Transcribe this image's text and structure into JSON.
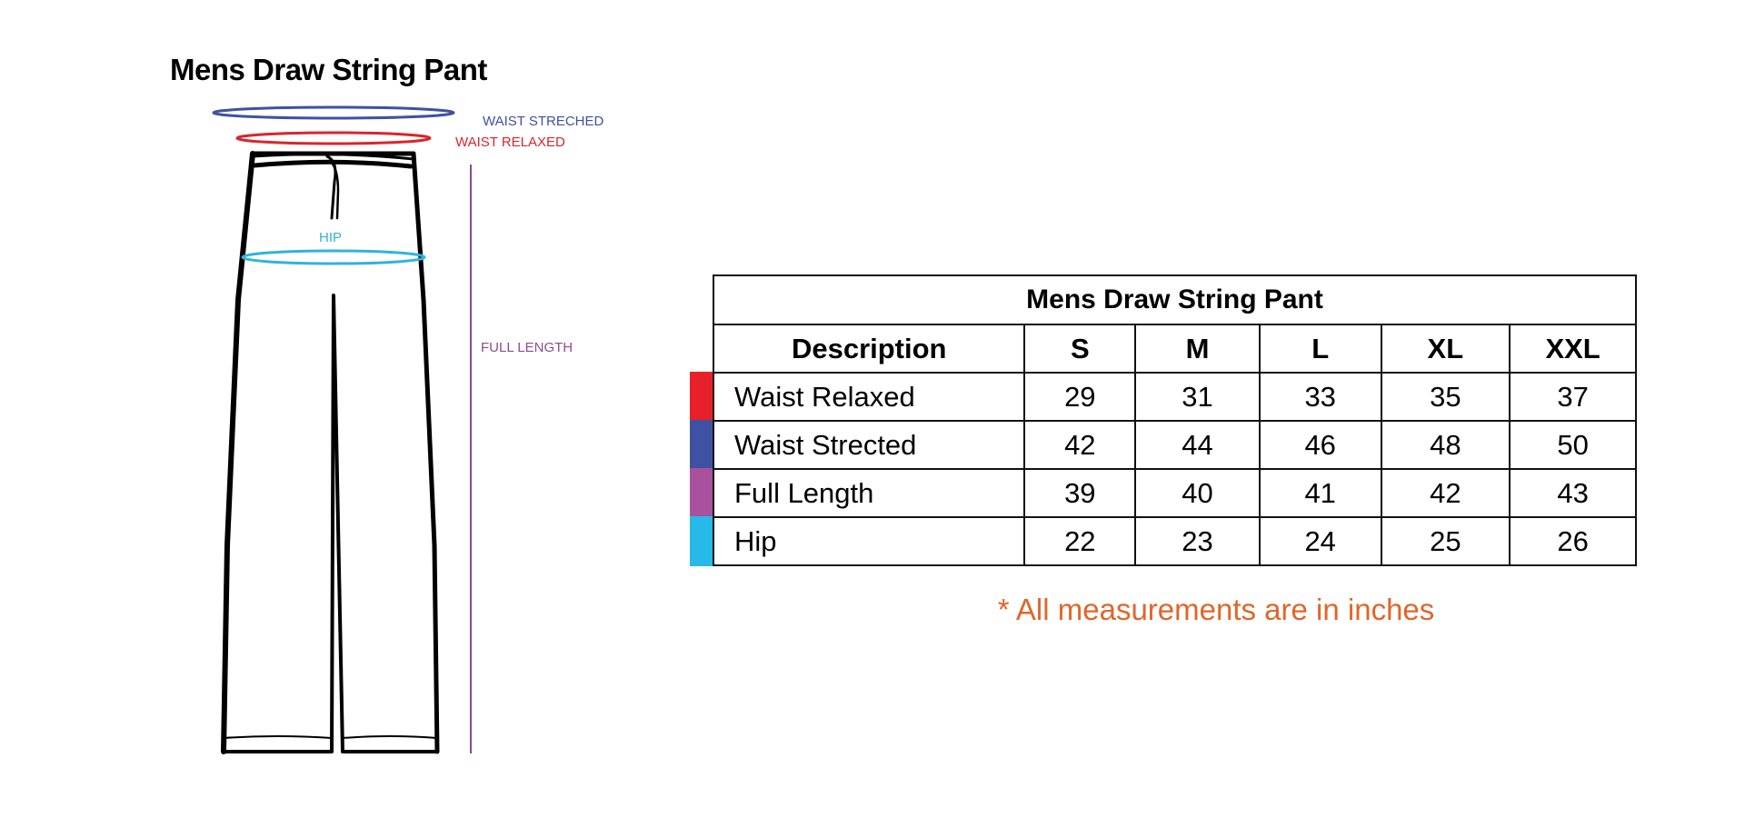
{
  "diagram": {
    "title": "Mens Draw String Pant",
    "labels": {
      "waist_stretched": "WAIST STRECHED",
      "waist_relaxed": "WAIST RELAXED",
      "hip": "HIP",
      "full_length": "FULL LENGTH"
    }
  },
  "table": {
    "title": "Mens Draw String Pant",
    "headers": [
      "Description",
      "S",
      "M",
      "L",
      "XL",
      "XXL"
    ],
    "rows": [
      {
        "label": "Waist Relaxed",
        "values": [
          "29",
          "31",
          "33",
          "35",
          "37"
        ],
        "color": "#e8202a"
      },
      {
        "label": "Waist Strected",
        "values": [
          "42",
          "44",
          "46",
          "48",
          "50"
        ],
        "color": "#3f51a3"
      },
      {
        "label": "Full Length",
        "values": [
          "39",
          "40",
          "41",
          "42",
          "43"
        ],
        "color": "#a9519d"
      },
      {
        "label": "Hip",
        "values": [
          "22",
          "23",
          "24",
          "25",
          "26"
        ],
        "color": "#27b9e8"
      }
    ]
  },
  "footnote": "* All measurements are in inches",
  "colors": {
    "waist_stretched": "#3f51a3",
    "waist_relaxed": "#d8262e",
    "hip": "#2fb3df",
    "full_length": "#8e4a8f",
    "footnote": "#e0662a"
  }
}
